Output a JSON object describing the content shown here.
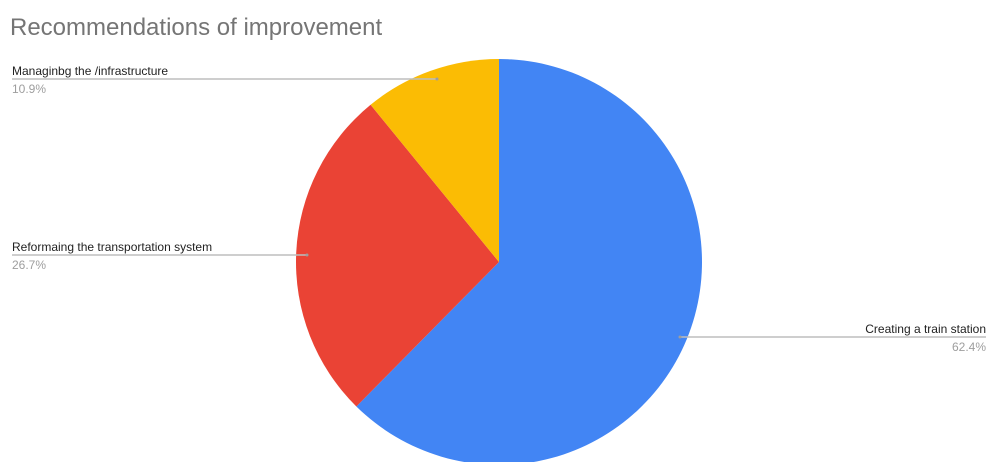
{
  "chart_data": {
    "type": "pie",
    "title": "Recommendations of improvement",
    "slices": [
      {
        "label": "Creating a train station",
        "value": 62.4,
        "percent_label": "62.4%",
        "color": "#4285F4"
      },
      {
        "label": "Reformaing the transportation system",
        "value": 26.7,
        "percent_label": "26.7%",
        "color": "#EA4335"
      },
      {
        "label": "Managinbg the /infrastructure",
        "value": 10.9,
        "percent_label": "10.9%",
        "color": "#FBBC04"
      }
    ],
    "start_angle": "12 o'clock",
    "direction": "clockwise",
    "leader_color": "#bdbdbd"
  }
}
